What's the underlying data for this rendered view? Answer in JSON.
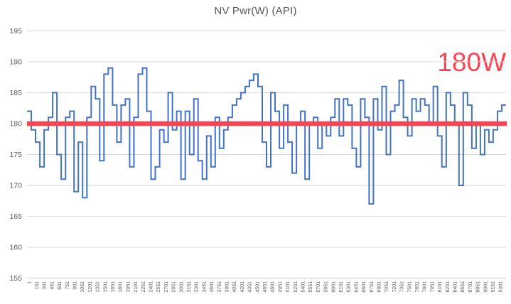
{
  "chart_data": {
    "type": "line",
    "line_style": "step",
    "title": "NV Pwr(W) (API)",
    "xlabel": "",
    "ylabel": "",
    "ylim": [
      155,
      195
    ],
    "y_ticks": [
      155,
      160,
      165,
      170,
      175,
      180,
      185,
      190,
      195
    ],
    "x_tick_labels": [
      "1",
      "151",
      "301",
      "451",
      "601",
      "751",
      "901",
      "1051",
      "1201",
      "1351",
      "1501",
      "1651",
      "1801",
      "1951",
      "2101",
      "2251",
      "2401",
      "2551",
      "2701",
      "2851",
      "3001",
      "3151",
      "3301",
      "3451",
      "3601",
      "3751",
      "3901",
      "4051",
      "4201",
      "4351",
      "4501",
      "4651",
      "4801",
      "4951",
      "5101",
      "5251",
      "5401",
      "5551",
      "5701",
      "5851",
      "6001",
      "6151",
      "6301",
      "6451",
      "6601",
      "6751",
      "6901",
      "7051",
      "7201",
      "7351",
      "7501",
      "7651",
      "7801",
      "7951",
      "8101",
      "8251",
      "8401",
      "8551",
      "8701",
      "8851",
      "9001",
      "9151",
      "9301"
    ],
    "grid": true,
    "legend": false,
    "series": [
      {
        "name": "NV Pwr(W) (API)",
        "color": "#4472c4",
        "values": [
          182,
          179,
          177,
          173,
          179,
          181,
          185,
          175,
          171,
          181,
          182,
          169,
          177,
          168,
          181,
          186,
          184,
          174,
          188,
          189,
          183,
          177,
          183,
          184,
          173,
          181,
          188,
          189,
          182,
          171,
          173,
          179,
          177,
          185,
          179,
          182,
          171,
          182,
          175,
          184,
          174,
          171,
          178,
          173,
          181,
          176,
          179,
          181,
          183,
          184,
          185,
          186,
          187,
          188,
          186,
          177,
          173,
          185,
          182,
          176,
          183,
          177,
          172,
          180,
          182,
          171,
          180,
          181,
          176,
          180,
          178,
          181,
          184,
          178,
          184,
          183,
          176,
          173,
          184,
          181,
          167,
          184,
          179,
          186,
          175,
          182,
          183,
          187,
          181,
          178,
          184,
          182,
          184,
          183,
          180,
          186,
          178,
          173,
          185,
          183,
          180,
          170,
          185,
          183,
          176,
          180,
          175,
          179,
          177,
          179,
          182,
          183
        ]
      }
    ],
    "reference_line": {
      "value": 180,
      "label": "180W",
      "color": "#fa4350"
    }
  },
  "colors": {
    "background": "#ffffff",
    "grid": "#d9d9d9",
    "axis_line": "#d0d0d0",
    "axis_text": "#595959",
    "title_text": "#595959"
  }
}
